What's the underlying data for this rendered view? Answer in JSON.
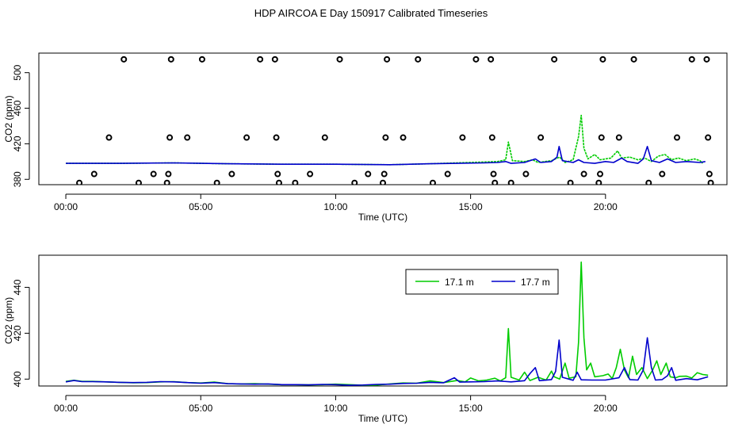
{
  "title": "HDP AIRCOA E  Day 150917  Calibrated Timeseries",
  "colors": {
    "green": "#00cc00",
    "blue": "#0000cc",
    "points": "#000000"
  },
  "chart_data": [
    {
      "type": "scatter",
      "xlabel": "Time (UTC)",
      "ylabel": "CO2 (ppm)",
      "x_ticks": [
        "00:00",
        "05:00",
        "10:00",
        "15:00",
        "20:00"
      ],
      "y_ticks": [
        "380",
        "420",
        "460",
        "500"
      ],
      "xlim": [
        -1.0,
        24.5
      ],
      "ylim": [
        374,
        522
      ],
      "grid": false,
      "points": [
        [
          0.5,
          376
        ],
        [
          1.05,
          386
        ],
        [
          1.6,
          427
        ],
        [
          2.15,
          515
        ],
        [
          2.7,
          376
        ],
        [
          3.25,
          386
        ],
        [
          3.75,
          376
        ],
        [
          3.8,
          386
        ],
        [
          3.85,
          427
        ],
        [
          3.9,
          515
        ],
        [
          4.5,
          427
        ],
        [
          5.05,
          515
        ],
        [
          5.6,
          376
        ],
        [
          6.15,
          386
        ],
        [
          6.7,
          427
        ],
        [
          7.2,
          515
        ],
        [
          7.75,
          515
        ],
        [
          7.8,
          427
        ],
        [
          7.85,
          386
        ],
        [
          7.9,
          376
        ],
        [
          8.5,
          376
        ],
        [
          9.05,
          386
        ],
        [
          9.6,
          427
        ],
        [
          10.15,
          515
        ],
        [
          10.7,
          376
        ],
        [
          11.2,
          386
        ],
        [
          11.75,
          376
        ],
        [
          11.8,
          386
        ],
        [
          11.85,
          427
        ],
        [
          11.9,
          515
        ],
        [
          12.5,
          427
        ],
        [
          13.05,
          515
        ],
        [
          13.6,
          376
        ],
        [
          14.15,
          386
        ],
        [
          14.7,
          427
        ],
        [
          15.2,
          515
        ],
        [
          15.75,
          515
        ],
        [
          15.8,
          427
        ],
        [
          15.85,
          386
        ],
        [
          15.9,
          376
        ],
        [
          16.5,
          376
        ],
        [
          17.05,
          386
        ],
        [
          17.6,
          427
        ],
        [
          18.1,
          515
        ],
        [
          18.7,
          376
        ],
        [
          19.2,
          386
        ],
        [
          19.75,
          376
        ],
        [
          19.8,
          386
        ],
        [
          19.85,
          427
        ],
        [
          19.9,
          515
        ],
        [
          20.5,
          427
        ],
        [
          21.05,
          515
        ],
        [
          21.6,
          376
        ],
        [
          22.1,
          386
        ],
        [
          22.65,
          427
        ],
        [
          23.2,
          515
        ],
        [
          23.75,
          515
        ],
        [
          23.8,
          427
        ],
        [
          23.85,
          386
        ],
        [
          23.9,
          376
        ]
      ],
      "series": [
        {
          "values": [
            [
              0,
              398
            ],
            [
              2,
              398
            ],
            [
              4,
              398.5
            ],
            [
              6,
              397.5
            ],
            [
              8,
              397
            ],
            [
              10,
              397
            ],
            [
              12,
              396.5
            ],
            [
              13.5,
              397.5
            ],
            [
              14.5,
              398.5
            ],
            [
              15.5,
              399.5
            ],
            [
              16.0,
              400
            ],
            [
              16.3,
              402
            ],
            [
              16.4,
              422
            ],
            [
              16.55,
              401
            ],
            [
              17.0,
              400
            ],
            [
              17.3,
              402
            ],
            [
              17.5,
              399
            ],
            [
              18.0,
              401
            ],
            [
              18.3,
              405
            ],
            [
              18.5,
              399
            ],
            [
              18.8,
              402
            ],
            [
              19.0,
              428
            ],
            [
              19.1,
              452
            ],
            [
              19.2,
              415
            ],
            [
              19.35,
              403
            ],
            [
              19.6,
              408
            ],
            [
              19.8,
              402
            ],
            [
              20.2,
              404
            ],
            [
              20.45,
              412
            ],
            [
              20.6,
              404
            ],
            [
              20.9,
              405
            ],
            [
              21.2,
              402
            ],
            [
              21.45,
              404
            ],
            [
              21.7,
              400
            ],
            [
              21.95,
              406
            ],
            [
              22.2,
              408
            ],
            [
              22.45,
              402
            ],
            [
              22.7,
              404
            ],
            [
              23.0,
              401
            ],
            [
              23.3,
              403
            ],
            [
              23.5,
              401
            ],
            [
              23.6,
              398
            ]
          ]
        },
        {
          "values": [
            [
              0,
              398
            ],
            [
              2,
              398
            ],
            [
              4,
              398.5
            ],
            [
              6,
              397.5
            ],
            [
              8,
              397
            ],
            [
              10,
              397
            ],
            [
              12,
              396.5
            ],
            [
              13.5,
              397.5
            ],
            [
              14.5,
              398
            ],
            [
              15.5,
              398.5
            ],
            [
              16.0,
              399
            ],
            [
              16.3,
              400
            ],
            [
              16.5,
              398
            ],
            [
              17.0,
              399
            ],
            [
              17.4,
              403
            ],
            [
              17.6,
              399
            ],
            [
              18.0,
              400
            ],
            [
              18.2,
              405
            ],
            [
              18.28,
              417
            ],
            [
              18.4,
              401
            ],
            [
              18.8,
              399
            ],
            [
              19.0,
              402
            ],
            [
              19.2,
              399
            ],
            [
              19.6,
              398
            ],
            [
              20.0,
              400
            ],
            [
              20.3,
              399
            ],
            [
              20.6,
              404
            ],
            [
              20.8,
              400
            ],
            [
              21.2,
              398
            ],
            [
              21.4,
              403
            ],
            [
              21.55,
              417
            ],
            [
              21.7,
              401
            ],
            [
              22.0,
              399
            ],
            [
              22.3,
              403
            ],
            [
              22.6,
              399
            ],
            [
              23.0,
              400
            ],
            [
              23.5,
              399
            ],
            [
              23.7,
              400
            ]
          ]
        }
      ]
    },
    {
      "type": "line",
      "xlabel": "Time (UTC)",
      "ylabel": "CO2 (ppm)",
      "x_ticks": [
        "00:00",
        "05:00",
        "10:00",
        "15:00",
        "20:00"
      ],
      "y_ticks": [
        "400",
        "420",
        "440"
      ],
      "xlim": [
        -1.0,
        24.5
      ],
      "ylim": [
        397,
        454
      ],
      "grid": false,
      "legend": {
        "placement": "top-right"
      },
      "series": [
        {
          "name": "17.1 m",
          "color": "#00cc00",
          "values": [
            [
              0,
              399
            ],
            [
              0.3,
              399.5
            ],
            [
              0.6,
              399
            ],
            [
              1.0,
              399
            ],
            [
              1.5,
              398.8
            ],
            [
              2,
              398.6
            ],
            [
              2.5,
              398.4
            ],
            [
              3,
              398.5
            ],
            [
              3.5,
              398.8
            ],
            [
              4,
              398.9
            ],
            [
              4.5,
              398.5
            ],
            [
              5,
              398.3
            ],
            [
              5.5,
              398.7
            ],
            [
              6,
              398.0
            ],
            [
              6.5,
              397.9
            ],
            [
              7,
              398.0
            ],
            [
              7.5,
              397.8
            ],
            [
              8,
              397.6
            ],
            [
              8.5,
              397.6
            ],
            [
              9,
              397.5
            ],
            [
              9.5,
              397.6
            ],
            [
              10,
              397.8
            ],
            [
              10.5,
              397.6
            ],
            [
              11,
              397.3
            ],
            [
              11.5,
              397.4
            ],
            [
              12,
              397.9
            ],
            [
              12.5,
              398.3
            ],
            [
              13,
              398.2
            ],
            [
              13.5,
              399.2
            ],
            [
              14.0,
              398.5
            ],
            [
              14.5,
              399.4
            ],
            [
              14.8,
              398.8
            ],
            [
              15.0,
              400.5
            ],
            [
              15.3,
              399.2
            ],
            [
              15.6,
              399.6
            ],
            [
              15.9,
              400.4
            ],
            [
              16.1,
              399.2
            ],
            [
              16.3,
              400.6
            ],
            [
              16.4,
              422
            ],
            [
              16.5,
              400.8
            ],
            [
              16.8,
              399.6
            ],
            [
              17.0,
              403
            ],
            [
              17.2,
              399.4
            ],
            [
              17.5,
              400.8
            ],
            [
              17.8,
              399.6
            ],
            [
              18.0,
              403.5
            ],
            [
              18.1,
              401
            ],
            [
              18.3,
              400
            ],
            [
              18.5,
              407
            ],
            [
              18.65,
              400.4
            ],
            [
              18.9,
              401
            ],
            [
              19.0,
              416
            ],
            [
              19.1,
              451
            ],
            [
              19.2,
              418
            ],
            [
              19.3,
              404
            ],
            [
              19.45,
              407
            ],
            [
              19.6,
              401
            ],
            [
              19.9,
              401.5
            ],
            [
              20.1,
              402.2
            ],
            [
              20.25,
              400.2
            ],
            [
              20.4,
              405
            ],
            [
              20.55,
              413
            ],
            [
              20.7,
              404
            ],
            [
              20.85,
              400.6
            ],
            [
              21.0,
              410
            ],
            [
              21.15,
              402
            ],
            [
              21.35,
              405
            ],
            [
              21.55,
              400.2
            ],
            [
              21.75,
              404
            ],
            [
              21.9,
              408
            ],
            [
              22.05,
              402
            ],
            [
              22.25,
              407
            ],
            [
              22.4,
              401
            ],
            [
              22.6,
              400.6
            ],
            [
              22.75,
              401.2
            ],
            [
              23.0,
              401.3
            ],
            [
              23.2,
              400.5
            ],
            [
              23.4,
              402.8
            ],
            [
              23.6,
              402
            ],
            [
              23.8,
              401.7
            ]
          ]
        },
        {
          "name": "17.7 m",
          "color": "#0000cc",
          "values": [
            [
              0,
              398.8
            ],
            [
              0.3,
              399.4
            ],
            [
              0.6,
              398.9
            ],
            [
              1.0,
              398.9
            ],
            [
              1.5,
              398.8
            ],
            [
              2,
              398.6
            ],
            [
              2.5,
              398.5
            ],
            [
              3,
              398.6
            ],
            [
              3.5,
              398.9
            ],
            [
              4,
              398.8
            ],
            [
              4.5,
              398.5
            ],
            [
              5,
              398.2
            ],
            [
              5.5,
              398.5
            ],
            [
              6,
              398.0
            ],
            [
              6.5,
              397.9
            ],
            [
              7,
              397.8
            ],
            [
              7.5,
              397.9
            ],
            [
              8,
              397.6
            ],
            [
              8.5,
              397.6
            ],
            [
              9,
              397.5
            ],
            [
              9.5,
              397.7
            ],
            [
              10,
              397.6
            ],
            [
              10.5,
              397.3
            ],
            [
              11,
              397.4
            ],
            [
              11.5,
              397.7
            ],
            [
              12,
              397.8
            ],
            [
              12.5,
              398.1
            ],
            [
              13,
              398.2
            ],
            [
              13.5,
              398.6
            ],
            [
              14.0,
              398.4
            ],
            [
              14.4,
              400.6
            ],
            [
              14.6,
              398.7
            ],
            [
              15.0,
              398.8
            ],
            [
              15.5,
              398.9
            ],
            [
              16.0,
              399.2
            ],
            [
              16.5,
              398.8
            ],
            [
              17.0,
              399.3
            ],
            [
              17.2,
              402.4
            ],
            [
              17.4,
              405
            ],
            [
              17.55,
              399.3
            ],
            [
              18.0,
              399.8
            ],
            [
              18.15,
              403.4
            ],
            [
              18.28,
              417
            ],
            [
              18.4,
              400.8
            ],
            [
              18.8,
              399.5
            ],
            [
              18.95,
              403
            ],
            [
              19.1,
              399.7
            ],
            [
              19.5,
              399.6
            ],
            [
              20.0,
              399.6
            ],
            [
              20.5,
              400.6
            ],
            [
              20.7,
              405
            ],
            [
              20.9,
              399.8
            ],
            [
              21.2,
              399.6
            ],
            [
              21.4,
              404
            ],
            [
              21.55,
              418
            ],
            [
              21.7,
              405
            ],
            [
              21.85,
              399.6
            ],
            [
              22.1,
              399.8
            ],
            [
              22.3,
              401.5
            ],
            [
              22.45,
              405
            ],
            [
              22.6,
              399.5
            ],
            [
              23.0,
              400.2
            ],
            [
              23.4,
              399.7
            ],
            [
              23.8,
              401
            ]
          ]
        }
      ]
    }
  ]
}
